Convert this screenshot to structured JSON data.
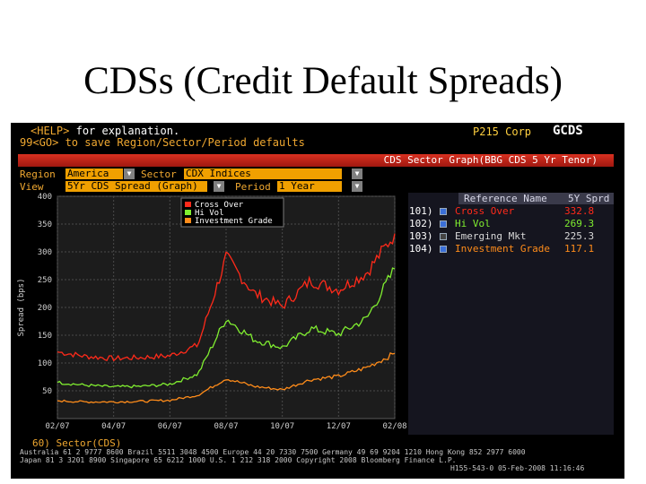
{
  "slide": {
    "title": "CDSs (Credit Default Spreads)"
  },
  "terminal": {
    "help_key": "<HELP>",
    "help_text": "for explanation.",
    "save_hint": "99<GO> to save Region/Sector/Period defaults",
    "page_code": "P215 Corp",
    "function": "GCDS",
    "graph_title": "CDS Sector Graph(BBG CDS 5 Yr Tenor)",
    "region_label": "Region",
    "region_value": "America",
    "sector_label": "Sector",
    "sector_value": "CDX Indices",
    "view_label": "View",
    "view_value": "5Yr CDS Spread (Graph)",
    "period_label": "Period",
    "period_value": "1 Year",
    "bottom_command": "60) Sector(CDS)",
    "footer_lines": [
      "Australia 61 2 9777 8600 Brazil 5511 3048 4500 Europe 44 20 7330 7500 Germany 49 69 9204 1210 Hong Kong 852 2977 6000",
      "Japan 81 3 3201 8900        Singapore 65 6212 1000        U.S. 1 212 318 2000        Copyright 2008 Bloomberg Finance L.P.",
      "H155-543-0 05-Feb-2008 11:16:46"
    ]
  },
  "reference": {
    "header_name": "Reference Name",
    "header_spread": "5Y Sprd",
    "rows": [
      {
        "num": "101)",
        "name": "Cross Over",
        "spread": "332.8",
        "color": "#ff2a1a",
        "checked": true
      },
      {
        "num": "102)",
        "name": "Hi Vol",
        "spread": "269.3",
        "color": "#80ee30",
        "checked": true
      },
      {
        "num": "103)",
        "name": "Emerging Mkt",
        "spread": "225.3",
        "color": "#d8d8d8",
        "checked": false
      },
      {
        "num": "104)",
        "name": "Investment Grade",
        "spread": "117.1",
        "color": "#ff8c1a",
        "checked": true
      }
    ]
  },
  "chart_data": {
    "type": "line",
    "title": "",
    "xlabel": "",
    "ylabel": "Spread (bps)",
    "ylim": [
      0,
      400
    ],
    "yticks": [
      50,
      100,
      150,
      200,
      250,
      300,
      350,
      400
    ],
    "xticks": [
      "02/07",
      "04/07",
      "06/07",
      "08/07",
      "10/07",
      "12/07",
      "02/08"
    ],
    "grid": true,
    "legend_position": "top-center",
    "series": [
      {
        "name": "Cross Over",
        "color": "#ff2a1a",
        "x": [
          0,
          1,
          2,
          3,
          4,
          5,
          6,
          7,
          8,
          9,
          10,
          11,
          12
        ],
        "values": [
          120,
          112,
          108,
          110,
          113,
          132,
          290,
          225,
          202,
          248,
          232,
          262,
          332.8
        ]
      },
      {
        "name": "Hi Vol",
        "color": "#80ee30",
        "x": [
          0,
          1,
          2,
          3,
          4,
          5,
          6,
          7,
          8,
          9,
          10,
          11,
          12
        ],
        "values": [
          65,
          60,
          57,
          58,
          62,
          80,
          180,
          142,
          128,
          162,
          152,
          180,
          269.3
        ]
      },
      {
        "name": "Investment Grade",
        "color": "#ff8c1a",
        "x": [
          0,
          1,
          2,
          3,
          4,
          5,
          6,
          7,
          8,
          9,
          10,
          11,
          12
        ],
        "values": [
          32,
          30,
          30,
          31,
          33,
          42,
          72,
          58,
          52,
          70,
          76,
          92,
          117.1
        ]
      }
    ]
  }
}
